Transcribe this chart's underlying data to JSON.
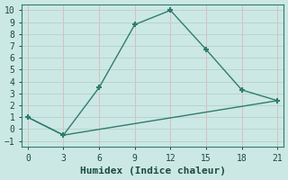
{
  "line1_x": [
    0,
    3,
    6,
    9,
    12,
    15,
    18,
    21
  ],
  "line1_y": [
    1,
    -0.5,
    3.5,
    8.8,
    10,
    6.7,
    3.3,
    2.4
  ],
  "line2_x": [
    0,
    3,
    21
  ],
  "line2_y": [
    1,
    -0.5,
    2.4
  ],
  "line_color": "#2e7d6e",
  "bg_color": "#cce8e4",
  "grid_color_h": "#b8d4cc",
  "grid_color_v": "#d8bfc0",
  "xlabel": "Humidex (Indice chaleur)",
  "xlim": [
    -0.5,
    21.5
  ],
  "ylim": [
    -1.5,
    10.5
  ],
  "xticks": [
    0,
    3,
    6,
    9,
    12,
    15,
    18,
    21
  ],
  "yticks": [
    -1,
    0,
    1,
    2,
    3,
    4,
    5,
    6,
    7,
    8,
    9,
    10
  ],
  "marker": "+",
  "markersize": 5,
  "markeredgewidth": 1.5,
  "linewidth": 1.0,
  "xlabel_fontsize": 8,
  "tick_fontsize": 7
}
